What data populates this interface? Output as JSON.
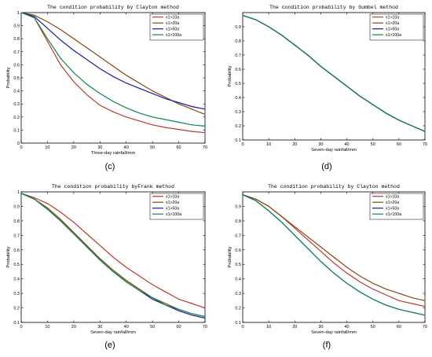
{
  "figure": {
    "panel_labels": [
      "(c)",
      "(d)",
      "(e)",
      "(f)"
    ]
  },
  "chart_data": [
    {
      "type": "line",
      "panel": "(c)",
      "title": "The condition probability by Clayton method",
      "xlabel": "Three-day rainfall/mm",
      "ylabel": "Probability",
      "xlim": [
        0,
        70
      ],
      "ylim": [
        0,
        1
      ],
      "xticks": [
        "0",
        "10",
        "20",
        "30",
        "40",
        "50",
        "60",
        "70"
      ],
      "yticks": [
        "0",
        "0.1",
        "0.2",
        "0.3",
        "0.4",
        "0.5",
        "0.6",
        "0.7",
        "0.8",
        "0.9",
        "1"
      ],
      "legend_position": "top-right",
      "x": [
        0,
        5,
        10,
        15,
        20,
        25,
        30,
        35,
        40,
        45,
        50,
        55,
        60,
        65,
        70
      ],
      "series": [
        {
          "name": "x1>10a",
          "color": "#c0392b",
          "values": [
            1.0,
            0.96,
            0.78,
            0.6,
            0.47,
            0.37,
            0.29,
            0.24,
            0.2,
            0.17,
            0.14,
            0.12,
            0.105,
            0.09,
            0.08
          ]
        },
        {
          "name": "x1>20a",
          "color": "#8b4513",
          "values": [
            1.0,
            0.98,
            0.93,
            0.87,
            0.8,
            0.73,
            0.66,
            0.59,
            0.52,
            0.46,
            0.4,
            0.35,
            0.3,
            0.26,
            0.22
          ]
        },
        {
          "name": "x1>50a",
          "color": "#1a1aa8",
          "values": [
            1.0,
            0.97,
            0.88,
            0.79,
            0.71,
            0.64,
            0.57,
            0.51,
            0.46,
            0.42,
            0.38,
            0.34,
            0.31,
            0.28,
            0.26
          ]
        },
        {
          "name": "x1>100a",
          "color": "#0b8a4a",
          "values": [
            1.0,
            0.96,
            0.8,
            0.65,
            0.54,
            0.45,
            0.38,
            0.32,
            0.27,
            0.23,
            0.2,
            0.18,
            0.16,
            0.14,
            0.13
          ]
        }
      ]
    },
    {
      "type": "line",
      "panel": "(d)",
      "title": "The condition probability by Gumbel method",
      "xlabel": "Seven-day rainfall/mm",
      "ylabel": "Probability",
      "xlim": [
        0,
        70
      ],
      "ylim": [
        0.1,
        1
      ],
      "xticks": [
        "0",
        "10",
        "20",
        "30",
        "40",
        "50",
        "60",
        "70"
      ],
      "yticks": [
        "0.1",
        "0.2",
        "0.3",
        "0.4",
        "0.5",
        "0.6",
        "0.7",
        "0.8",
        "0.9"
      ],
      "legend_position": "top-right",
      "x": [
        0,
        5,
        10,
        15,
        20,
        25,
        30,
        35,
        40,
        45,
        50,
        55,
        60,
        65,
        70
      ],
      "series": [
        {
          "name": "x1>10a",
          "color": "#c0392b",
          "values": [
            0.98,
            0.95,
            0.9,
            0.84,
            0.77,
            0.7,
            0.62,
            0.55,
            0.48,
            0.41,
            0.35,
            0.29,
            0.24,
            0.2,
            0.16
          ]
        },
        {
          "name": "x1>20a",
          "color": "#8b4513",
          "values": [
            0.98,
            0.95,
            0.9,
            0.84,
            0.77,
            0.7,
            0.62,
            0.55,
            0.48,
            0.41,
            0.35,
            0.29,
            0.24,
            0.2,
            0.16
          ]
        },
        {
          "name": "x1>50a",
          "color": "#1a1aa8",
          "values": [
            0.98,
            0.95,
            0.9,
            0.84,
            0.77,
            0.7,
            0.62,
            0.55,
            0.48,
            0.41,
            0.35,
            0.29,
            0.24,
            0.2,
            0.16
          ]
        },
        {
          "name": "x1>100a",
          "color": "#0b8a4a",
          "values": [
            0.98,
            0.95,
            0.9,
            0.84,
            0.77,
            0.7,
            0.62,
            0.55,
            0.48,
            0.41,
            0.35,
            0.29,
            0.24,
            0.2,
            0.16
          ]
        }
      ]
    },
    {
      "type": "line",
      "panel": "(e)",
      "title": "The condition probability byFrank method",
      "xlabel": "Seven-day rainfall/mm",
      "ylabel": "Probability",
      "xlim": [
        0,
        70
      ],
      "ylim": [
        0.1,
        1
      ],
      "xticks": [
        "0",
        "10",
        "20",
        "30",
        "40",
        "50",
        "60",
        "70"
      ],
      "yticks": [
        "0.1",
        "0.2",
        "0.3",
        "0.4",
        "0.5",
        "0.6",
        "0.7",
        "0.8",
        "0.9",
        "1"
      ],
      "legend_position": "top-right",
      "x": [
        0,
        5,
        10,
        15,
        20,
        25,
        30,
        35,
        40,
        45,
        50,
        55,
        60,
        65,
        70
      ],
      "series": [
        {
          "name": "x1>10a",
          "color": "#c0392b",
          "values": [
            0.99,
            0.96,
            0.92,
            0.86,
            0.79,
            0.71,
            0.63,
            0.55,
            0.48,
            0.42,
            0.36,
            0.31,
            0.26,
            0.23,
            0.2
          ]
        },
        {
          "name": "x1>20a",
          "color": "#8b4513",
          "values": [
            0.99,
            0.95,
            0.89,
            0.81,
            0.72,
            0.63,
            0.54,
            0.46,
            0.39,
            0.33,
            0.27,
            0.23,
            0.19,
            0.16,
            0.14
          ]
        },
        {
          "name": "x1>50a",
          "color": "#1a1aa8",
          "values": [
            0.99,
            0.95,
            0.88,
            0.8,
            0.71,
            0.62,
            0.53,
            0.45,
            0.38,
            0.32,
            0.26,
            0.22,
            0.18,
            0.15,
            0.13
          ]
        },
        {
          "name": "x1>100a",
          "color": "#0b8a4a",
          "values": [
            0.99,
            0.95,
            0.88,
            0.8,
            0.71,
            0.62,
            0.53,
            0.45,
            0.38,
            0.32,
            0.27,
            0.22,
            0.19,
            0.16,
            0.14
          ]
        }
      ]
    },
    {
      "type": "line",
      "panel": "(f)",
      "title": "The condition probability by Clayton method",
      "xlabel": "Seven-day rainfall/mm",
      "ylabel": "Probability",
      "xlim": [
        0,
        70
      ],
      "ylim": [
        0.1,
        1
      ],
      "xticks": [
        "0",
        "10",
        "20",
        "30",
        "40",
        "50",
        "60",
        "70"
      ],
      "yticks": [
        "0.1",
        "0.2",
        "0.3",
        "0.4",
        "0.5",
        "0.6",
        "0.7",
        "0.8",
        "0.9"
      ],
      "legend_position": "top-right",
      "x": [
        0,
        5,
        10,
        15,
        20,
        25,
        30,
        35,
        40,
        45,
        50,
        55,
        60,
        65,
        70
      ],
      "series": [
        {
          "name": "x1>10a",
          "color": "#c0392b",
          "values": [
            0.98,
            0.95,
            0.9,
            0.83,
            0.75,
            0.67,
            0.59,
            0.51,
            0.44,
            0.38,
            0.33,
            0.29,
            0.25,
            0.23,
            0.21
          ]
        },
        {
          "name": "x1>20a",
          "color": "#8b4513",
          "values": [
            0.98,
            0.95,
            0.9,
            0.83,
            0.76,
            0.69,
            0.62,
            0.55,
            0.48,
            0.42,
            0.37,
            0.33,
            0.3,
            0.27,
            0.25
          ]
        },
        {
          "name": "x1>50a",
          "color": "#1a1aa8",
          "values": [
            0.98,
            0.94,
            0.87,
            0.79,
            0.7,
            0.61,
            0.52,
            0.44,
            0.37,
            0.31,
            0.26,
            0.22,
            0.19,
            0.17,
            0.15
          ]
        },
        {
          "name": "x1>100a",
          "color": "#0b8a4a",
          "values": [
            0.98,
            0.94,
            0.87,
            0.79,
            0.7,
            0.61,
            0.52,
            0.44,
            0.37,
            0.31,
            0.26,
            0.22,
            0.19,
            0.17,
            0.15
          ]
        }
      ]
    }
  ]
}
